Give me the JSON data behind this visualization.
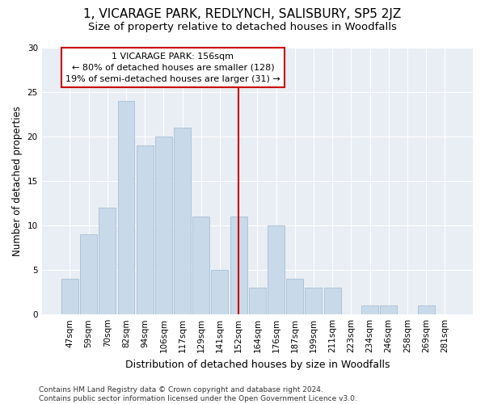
{
  "title": "1, VICARAGE PARK, REDLYNCH, SALISBURY, SP5 2JZ",
  "subtitle": "Size of property relative to detached houses in Woodfalls",
  "xlabel": "Distribution of detached houses by size in Woodfalls",
  "ylabel": "Number of detached properties",
  "categories": [
    "47sqm",
    "59sqm",
    "70sqm",
    "82sqm",
    "94sqm",
    "106sqm",
    "117sqm",
    "129sqm",
    "141sqm",
    "152sqm",
    "164sqm",
    "176sqm",
    "187sqm",
    "199sqm",
    "211sqm",
    "223sqm",
    "234sqm",
    "246sqm",
    "258sqm",
    "269sqm",
    "281sqm"
  ],
  "values": [
    4,
    9,
    12,
    24,
    19,
    20,
    21,
    11,
    5,
    11,
    3,
    10,
    4,
    3,
    3,
    0,
    1,
    1,
    0,
    1,
    0
  ],
  "bar_color": "#c8d9ea",
  "bar_edge_color": "#a8bfd4",
  "vline_x_index": 9,
  "vline_color": "#cc0000",
  "annotation_text": "1 VICARAGE PARK: 156sqm\n← 80% of detached houses are smaller (128)\n19% of semi-detached houses are larger (31) →",
  "annotation_box_facecolor": "#ffffff",
  "annotation_box_edgecolor": "#cc0000",
  "ylim": [
    0,
    30
  ],
  "yticks": [
    0,
    5,
    10,
    15,
    20,
    25,
    30
  ],
  "plot_bgcolor": "#e8eef4",
  "grid_color": "#ffffff",
  "footer_text": "Contains HM Land Registry data © Crown copyright and database right 2024.\nContains public sector information licensed under the Open Government Licence v3.0.",
  "title_fontsize": 11,
  "subtitle_fontsize": 9.5,
  "xlabel_fontsize": 9,
  "ylabel_fontsize": 8.5,
  "tick_fontsize": 7.5,
  "annotation_fontsize": 8,
  "footer_fontsize": 6.5
}
